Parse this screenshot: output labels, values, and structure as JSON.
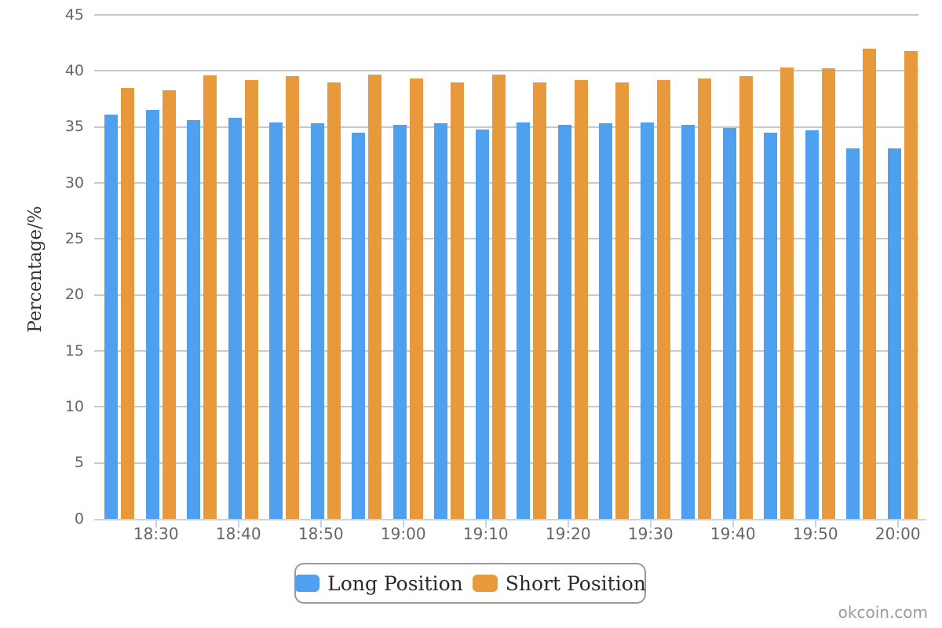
{
  "chart_data": {
    "type": "bar",
    "title": "",
    "ylabel": "Percentage/%",
    "xlabel": "",
    "ylim": [
      0,
      45
    ],
    "ytick_step": 5,
    "grid": true,
    "legend_position": "bottom",
    "categories": [
      "18:25",
      "18:30",
      "18:35",
      "18:40",
      "18:45",
      "18:50",
      "18:55",
      "19:00",
      "19:05",
      "19:10",
      "19:15",
      "19:20",
      "19:25",
      "19:30",
      "19:35",
      "19:40",
      "19:45",
      "19:50",
      "19:55",
      "20:00"
    ],
    "labeled_ticks": [
      "18:30",
      "18:40",
      "18:50",
      "19:00",
      "19:10",
      "19:20",
      "19:30",
      "19:40",
      "19:50",
      "20:00"
    ],
    "series": [
      {
        "name": "Long Position",
        "color": "#4fa1f0",
        "values": [
          36.1,
          36.5,
          35.6,
          35.8,
          35.4,
          35.3,
          34.5,
          35.2,
          35.3,
          34.8,
          35.4,
          35.2,
          35.3,
          35.4,
          35.2,
          34.9,
          34.5,
          34.7,
          33.1,
          33.1
        ]
      },
      {
        "name": "Short Position",
        "color": "#e8993c",
        "values": [
          38.5,
          38.3,
          39.6,
          39.2,
          39.5,
          39.0,
          39.7,
          39.3,
          39.0,
          39.7,
          39.0,
          39.2,
          39.0,
          39.2,
          39.3,
          39.5,
          40.3,
          40.2,
          42.0,
          41.8
        ]
      }
    ]
  },
  "watermark": "okcoin.com",
  "colors": {
    "grid": "#c9c9c9",
    "axis_line": "#c8d4e4",
    "tick_label": "#666666",
    "axis_title": "#333333",
    "legend_text": "#2b2b2b",
    "watermark": "#9a9a9a",
    "background": "#ffffff"
  }
}
